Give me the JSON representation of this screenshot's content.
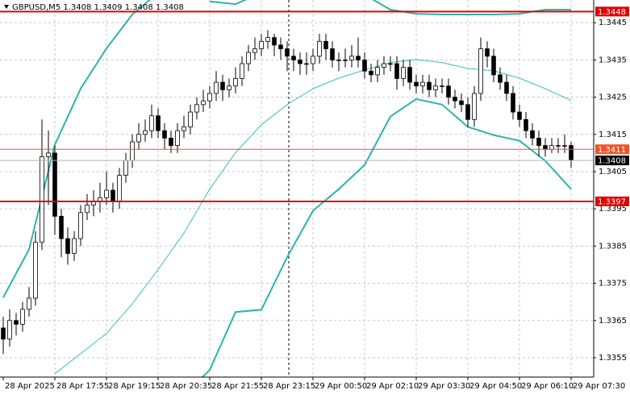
{
  "chart_data": {
    "type": "candlestick",
    "title": "GBPUSD,M5  1.3408 1.3409 1.3408 1.3408",
    "open": [
      1.3363,
      1.336,
      1.3365,
      1.3364,
      1.3368,
      1.3371,
      1.3386,
      1.3409,
      1.341,
      1.3393,
      1.3387,
      1.3383,
      1.3387,
      1.3394,
      1.3396,
      1.3397,
      1.3398,
      1.34,
      1.3397,
      1.3404,
      1.3408,
      1.3413,
      1.3415,
      1.3416,
      1.342,
      1.3416,
      1.3414,
      1.3412,
      1.3416,
      1.3417,
      1.3421,
      1.3423,
      1.3424,
      1.3426,
      1.3429,
      1.3427,
      1.3428,
      1.343,
      1.3434,
      1.3437,
      1.3438,
      1.344,
      1.3441,
      1.3439,
      1.3438,
      1.3436,
      1.3435,
      1.3434,
      1.3434,
      1.3436,
      1.344,
      1.3438,
      1.3435,
      1.3435,
      1.3435,
      1.3436,
      1.3435,
      1.3432,
      1.3431,
      1.3433,
      1.3434,
      1.3434,
      1.343,
      1.3433,
      1.3429,
      1.3428,
      1.3429,
      1.3427,
      1.3428,
      1.3428,
      1.3425,
      1.3424,
      1.3423,
      1.3419,
      1.3426,
      1.3438,
      1.3436,
      1.3431,
      1.3429,
      1.3426,
      1.3421,
      1.3419,
      1.3416,
      1.3414,
      1.3412,
      1.3411,
      1.3412,
      1.3412,
      1.3412
    ],
    "high": [
      1.3366,
      1.3368,
      1.3367,
      1.337,
      1.3374,
      1.3389,
      1.3419,
      1.3416,
      1.3412,
      1.3395,
      1.339,
      1.3389,
      1.3396,
      1.3399,
      1.34,
      1.3402,
      1.3405,
      1.3402,
      1.3406,
      1.341,
      1.3415,
      1.3418,
      1.3419,
      1.3423,
      1.3422,
      1.3418,
      1.3416,
      1.3418,
      1.342,
      1.3423,
      1.3425,
      1.3427,
      1.3428,
      1.3432,
      1.3431,
      1.343,
      1.3433,
      1.3436,
      1.3439,
      1.3441,
      1.3442,
      1.3443,
      1.3442,
      1.3441,
      1.344,
      1.3438,
      1.3437,
      1.3437,
      1.3438,
      1.3442,
      1.3442,
      1.344,
      1.3437,
      1.3438,
      1.3439,
      1.3441,
      1.3437,
      1.3434,
      1.3435,
      1.3436,
      1.3436,
      1.3436,
      1.3435,
      1.3435,
      1.3431,
      1.3431,
      1.3431,
      1.343,
      1.343,
      1.343,
      1.3427,
      1.3426,
      1.3425,
      1.3428,
      1.3441,
      1.344,
      1.3438,
      1.3433,
      1.3431,
      1.3428,
      1.3423,
      1.3421,
      1.3418,
      1.3416,
      1.3414,
      1.3414,
      1.3414,
      1.3415,
      1.3413
    ],
    "low": [
      1.3356,
      1.3358,
      1.3361,
      1.3362,
      1.3366,
      1.3369,
      1.3384,
      1.3396,
      1.3388,
      1.3382,
      1.338,
      1.3381,
      1.3385,
      1.3392,
      1.3393,
      1.3394,
      1.3396,
      1.3394,
      1.3395,
      1.3402,
      1.3406,
      1.3411,
      1.3413,
      1.3414,
      1.3414,
      1.3411,
      1.341,
      1.341,
      1.3414,
      1.3415,
      1.3419,
      1.3421,
      1.3422,
      1.3424,
      1.3424,
      1.3425,
      1.3426,
      1.3428,
      1.3432,
      1.3435,
      1.3436,
      1.3438,
      1.3436,
      1.3435,
      1.3432,
      1.3432,
      1.3431,
      1.3431,
      1.3432,
      1.3434,
      1.3435,
      1.3433,
      1.3432,
      1.3433,
      1.3433,
      1.3433,
      1.343,
      1.3429,
      1.3429,
      1.3431,
      1.3432,
      1.3427,
      1.3428,
      1.3427,
      1.3426,
      1.3426,
      1.3425,
      1.3425,
      1.3426,
      1.3423,
      1.3422,
      1.3421,
      1.3417,
      1.3417,
      1.3424,
      1.3433,
      1.3429,
      1.3427,
      1.3424,
      1.3419,
      1.3417,
      1.3414,
      1.3412,
      1.3409,
      1.3409,
      1.341,
      1.341,
      1.341,
      1.3406
    ],
    "close": [
      1.336,
      1.3365,
      1.3364,
      1.3368,
      1.3371,
      1.3386,
      1.3409,
      1.341,
      1.3393,
      1.3387,
      1.3383,
      1.3387,
      1.3394,
      1.3396,
      1.3397,
      1.3398,
      1.34,
      1.3397,
      1.3404,
      1.3408,
      1.3413,
      1.3415,
      1.3416,
      1.342,
      1.3416,
      1.3414,
      1.3412,
      1.3416,
      1.3417,
      1.3421,
      1.3423,
      1.3424,
      1.3426,
      1.3429,
      1.3427,
      1.3428,
      1.343,
      1.3434,
      1.3437,
      1.3438,
      1.344,
      1.3441,
      1.3439,
      1.3438,
      1.3436,
      1.3435,
      1.3434,
      1.3434,
      1.3436,
      1.344,
      1.3438,
      1.3435,
      1.3435,
      1.3435,
      1.3436,
      1.3435,
      1.3432,
      1.3431,
      1.3433,
      1.3434,
      1.3434,
      1.343,
      1.3433,
      1.3429,
      1.3428,
      1.3429,
      1.3427,
      1.3428,
      1.3428,
      1.3425,
      1.3424,
      1.3423,
      1.3419,
      1.3426,
      1.3438,
      1.3436,
      1.3431,
      1.3429,
      1.3426,
      1.3421,
      1.3419,
      1.3416,
      1.3414,
      1.3412,
      1.3411,
      1.3412,
      1.3412,
      1.3412,
      1.3408
    ],
    "bands": [
      {
        "color": "#2bb5aa",
        "width": 2,
        "x": [
          0,
          4,
          8,
          12,
          16,
          20,
          24,
          28,
          32,
          36,
          40,
          44,
          48,
          52,
          56,
          60,
          64,
          68,
          72,
          76,
          80,
          84,
          88
        ],
        "values": [
          1.33712,
          1.33841,
          1.34122,
          1.34273,
          1.34381,
          1.34472,
          1.3453,
          null,
          1.34507,
          1.345,
          1.3453,
          null,
          null,
          null,
          1.34525,
          1.34485,
          1.34474,
          1.34472,
          1.34472,
          1.34472,
          1.34474,
          1.34485,
          1.34485
        ]
      },
      {
        "color": "#3cc0b2",
        "width": 1,
        "x": [
          0,
          4,
          8,
          12,
          16,
          20,
          24,
          28,
          32,
          36,
          40,
          44,
          48,
          52,
          56,
          60,
          64,
          68,
          72,
          76,
          80,
          84,
          88
        ],
        "values": [
          null,
          null,
          1.33507,
          1.33561,
          1.33615,
          1.33695,
          1.33787,
          1.33885,
          1.34003,
          1.34101,
          1.34176,
          1.3423,
          1.34273,
          1.34301,
          1.34323,
          1.34343,
          1.34351,
          1.34343,
          1.34327,
          1.34321,
          1.34301,
          1.34273,
          1.34241
        ]
      },
      {
        "color": "#2bb5aa",
        "width": 2,
        "x": [
          0,
          4,
          8,
          12,
          16,
          20,
          24,
          28,
          32,
          36,
          40,
          44,
          48,
          52,
          56,
          60,
          64,
          68,
          72,
          76,
          80,
          84,
          88
        ],
        "values": [
          null,
          null,
          null,
          null,
          null,
          null,
          null,
          1.3345,
          1.33517,
          1.33673,
          1.33679,
          1.3382,
          1.33945,
          1.34003,
          1.34068,
          1.34198,
          1.34245,
          1.3423,
          1.3417,
          1.34148,
          1.34133,
          1.34079,
          1.34003
        ]
      }
    ],
    "levels": [
      {
        "value": 1.3448,
        "color": "#e00000",
        "width": 2
      },
      {
        "value": 1.3411,
        "color": "#f0522a",
        "width": 1
      },
      {
        "value": 1.3397,
        "color": "#e00000",
        "width": 2
      },
      {
        "value": 1.3408,
        "color": "#000000",
        "width": 0.5
      }
    ],
    "xlim": [
      -0.5,
      91.5
    ],
    "xticks": [
      {
        "value": 0,
        "label": "28 Apr 2025"
      },
      {
        "value": 8,
        "label": "28 Apr 17:55"
      },
      {
        "value": 16,
        "label": "28 Apr 19:15"
      },
      {
        "value": 24,
        "label": "28 Apr 20:35"
      },
      {
        "value": 32,
        "label": "28 Apr 21:55"
      },
      {
        "value": 40,
        "label": "28 Apr 23:15"
      },
      {
        "value": 48,
        "label": "29 Apr 00:50"
      },
      {
        "value": 56,
        "label": "29 Apr 02:10"
      },
      {
        "value": 64,
        "label": "29 Apr 03:30"
      },
      {
        "value": 72,
        "label": "29 Apr 04:50"
      },
      {
        "value": 80,
        "label": "29 Apr 06:10"
      },
      {
        "value": 88,
        "label": "29 Apr 07:30"
      }
    ],
    "ylim": [
      1.33498,
      1.34511
    ],
    "yticks": [
      1.3355,
      1.3365,
      1.3375,
      1.3385,
      1.3395,
      1.3405,
      1.3415,
      1.3425,
      1.3435,
      1.3445
    ],
    "grid": true
  }
}
